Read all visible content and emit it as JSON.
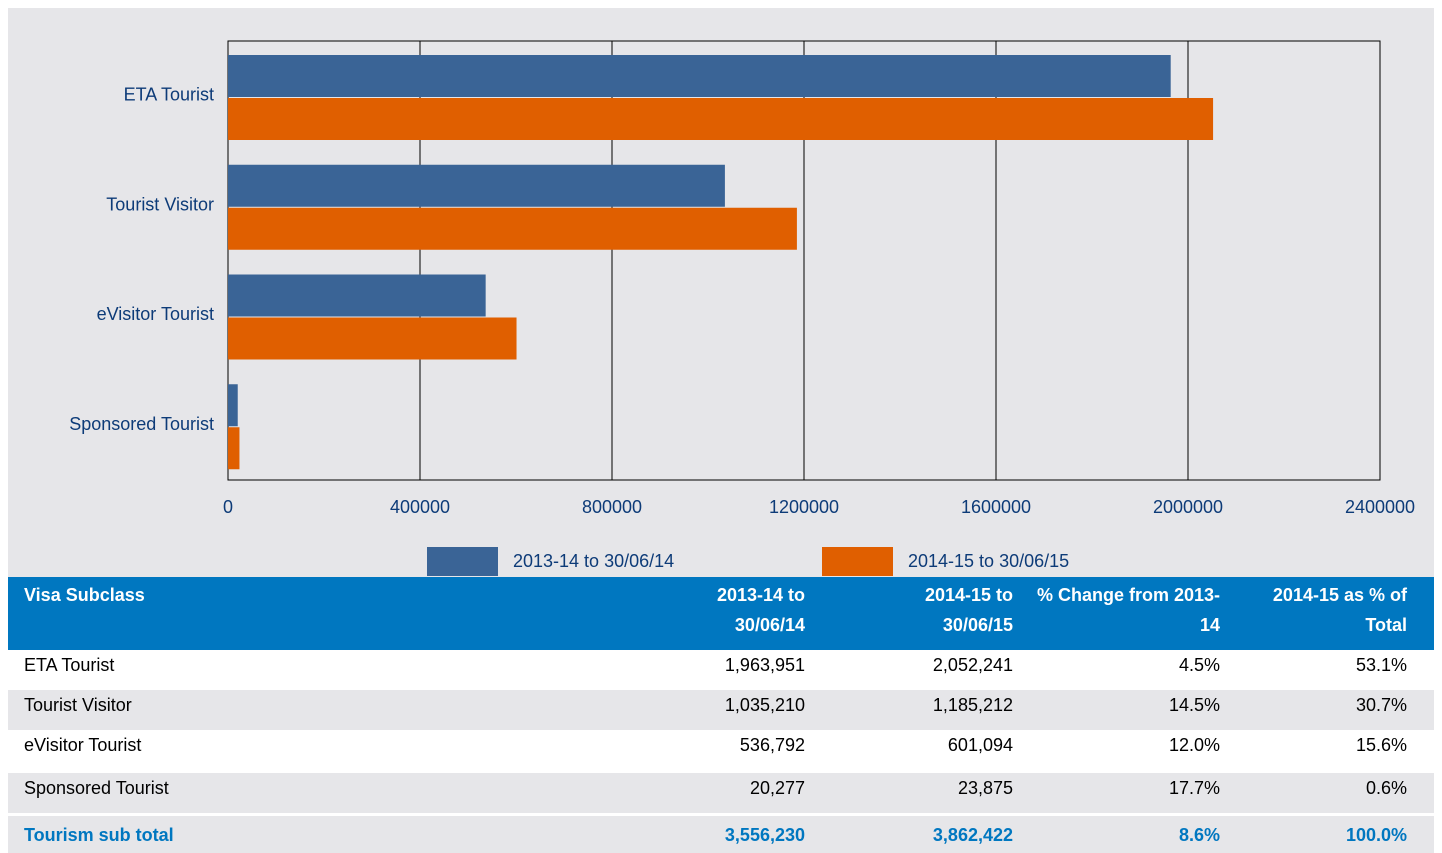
{
  "chart_data": {
    "type": "hbar",
    "categories": [
      "ETA Tourist",
      "Tourist Visitor",
      "eVisitor Tourist",
      "Sponsored Tourist"
    ],
    "series": [
      {
        "name": "2013-14 to 30/06/14",
        "color": "#3a6496",
        "values": [
          1963951,
          1035210,
          536792,
          20277
        ]
      },
      {
        "name": "2014-15 to 30/06/15",
        "color": "#e05f00",
        "values": [
          2052241,
          1185212,
          601094,
          23875
        ]
      }
    ],
    "xlim": [
      0,
      2400000
    ],
    "xticks": [
      0,
      400000,
      800000,
      1200000,
      1600000,
      2000000,
      2400000
    ],
    "grid": true,
    "legend": "bottom"
  },
  "table": {
    "header": [
      "Visa Subclass",
      "2013-14 to 30/06/14",
      "2014-15 to 30/06/15",
      "% Change from 2013-14",
      "2014-15 as % of Total"
    ],
    "rows": [
      [
        "ETA Tourist",
        "1,963,951",
        "2,052,241",
        "4.5%",
        "53.1%"
      ],
      [
        "Tourist Visitor",
        "1,035,210",
        "1,185,212",
        "14.5%",
        "30.7%"
      ],
      [
        "eVisitor Tourist",
        "536,792",
        "601,094",
        "12.0%",
        "15.6%"
      ],
      [
        "Sponsored Tourist",
        "20,277",
        "23,875",
        "17.7%",
        "0.6%"
      ]
    ],
    "total": [
      "Tourism sub total",
      "3,556,230",
      "3,862,422",
      "8.6%",
      "100.0%"
    ]
  }
}
